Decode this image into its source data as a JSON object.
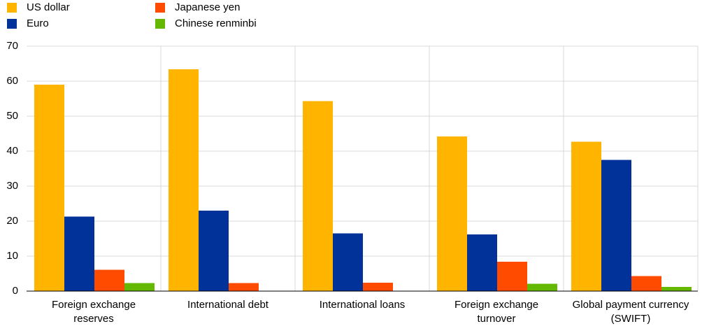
{
  "chart_data": {
    "type": "bar",
    "categories": [
      "Foreign exchange reserves",
      "International debt",
      "International loans",
      "Foreign exchange turnover",
      "Global payment currency (SWIFT)"
    ],
    "series": [
      {
        "name": "US dollar",
        "color": "#ffb400",
        "values": [
          59,
          63.4,
          54.3,
          44.2,
          42.7
        ]
      },
      {
        "name": "Euro",
        "color": "#003299",
        "values": [
          21.3,
          23,
          16.5,
          16.2,
          37.5
        ]
      },
      {
        "name": "Japanese yen",
        "color": "#ff4b00",
        "values": [
          6.1,
          2.3,
          2.4,
          8.4,
          4.3
        ]
      },
      {
        "name": "Chinese renminbi",
        "color": "#65b800",
        "values": [
          2.3,
          null,
          null,
          2.1,
          1.2
        ]
      }
    ],
    "ylim": [
      0,
      70
    ],
    "yticks": [
      0,
      10,
      20,
      30,
      40,
      50,
      60,
      70
    ],
    "grid": true,
    "legend": "top-left"
  }
}
